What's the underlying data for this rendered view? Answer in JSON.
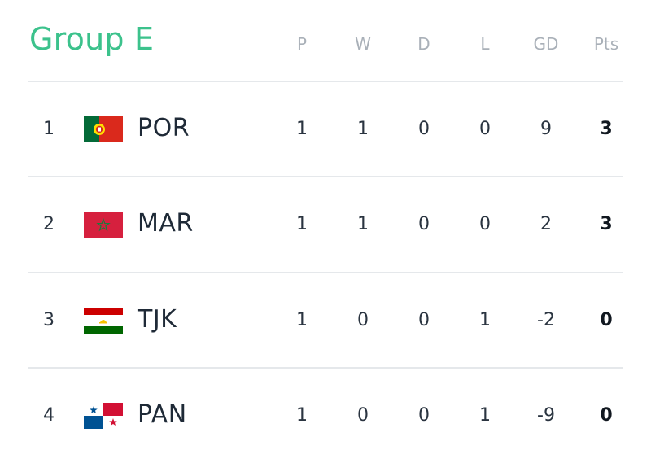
{
  "group": {
    "title": "Group E"
  },
  "columns": [
    "P",
    "W",
    "D",
    "L",
    "GD",
    "Pts"
  ],
  "rows": [
    {
      "rank": "1",
      "team": "POR",
      "flag": "portugal-flag-icon",
      "p": "1",
      "w": "1",
      "d": "0",
      "l": "0",
      "gd": "9",
      "pts": "3"
    },
    {
      "rank": "2",
      "team": "MAR",
      "flag": "morocco-flag-icon",
      "p": "1",
      "w": "1",
      "d": "0",
      "l": "0",
      "gd": "2",
      "pts": "3"
    },
    {
      "rank": "3",
      "team": "TJK",
      "flag": "tajikistan-flag-icon",
      "p": "1",
      "w": "0",
      "d": "0",
      "l": "1",
      "gd": "-2",
      "pts": "0"
    },
    {
      "rank": "4",
      "team": "PAN",
      "flag": "panama-flag-icon",
      "p": "1",
      "w": "0",
      "d": "0",
      "l": "1",
      "gd": "-9",
      "pts": "0"
    }
  ],
  "colors": {
    "title": "#3cc28c",
    "header": "#a9b0b8",
    "divider": "#e5e8eb"
  }
}
